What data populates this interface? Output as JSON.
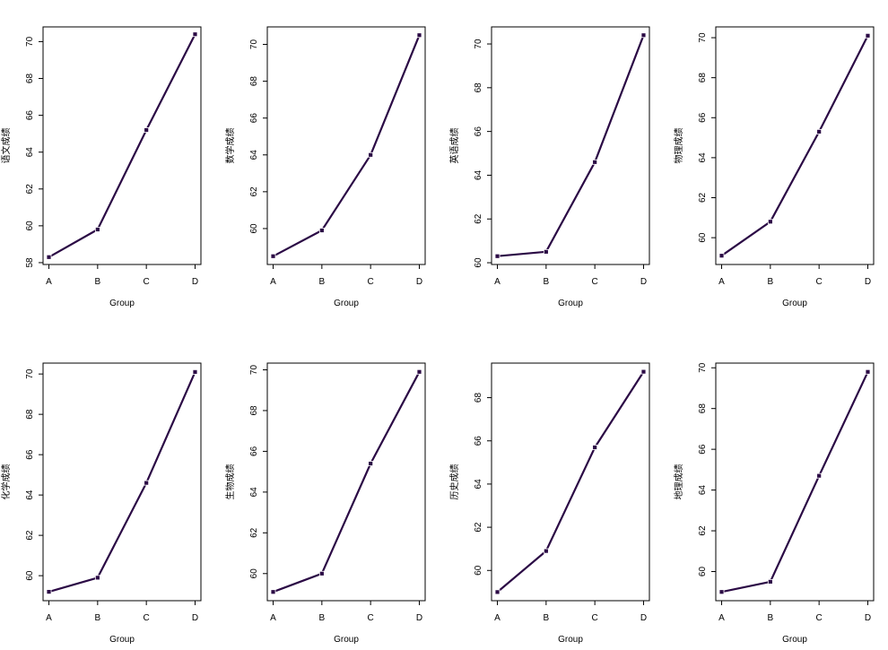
{
  "chart_data": [
    {
      "type": "line",
      "xlabel": "Group",
      "ylabel": "语文成绩",
      "categories": [
        "A",
        "B",
        "C",
        "D"
      ],
      "values": [
        58.3,
        59.8,
        65.2,
        70.4
      ],
      "ylim": [
        57.9,
        70.8
      ],
      "yticks": [
        58,
        60,
        62,
        64,
        66,
        68,
        70
      ]
    },
    {
      "type": "line",
      "xlabel": "Group",
      "ylabel": "数学成绩",
      "categories": [
        "A",
        "B",
        "C",
        "D"
      ],
      "values": [
        58.5,
        59.9,
        64.0,
        70.5
      ],
      "ylim": [
        58.05,
        70.95
      ],
      "yticks": [
        60,
        62,
        64,
        66,
        68,
        70
      ]
    },
    {
      "type": "line",
      "xlabel": "Group",
      "ylabel": "英语成绩",
      "categories": [
        "A",
        "B",
        "C",
        "D"
      ],
      "values": [
        60.3,
        60.5,
        64.6,
        70.4
      ],
      "ylim": [
        59.92,
        70.78
      ],
      "yticks": [
        60,
        62,
        64,
        66,
        68,
        70
      ]
    },
    {
      "type": "line",
      "xlabel": "Group",
      "ylabel": "物理成绩",
      "categories": [
        "A",
        "B",
        "C",
        "D"
      ],
      "values": [
        59.1,
        60.8,
        65.3,
        70.1
      ],
      "ylim": [
        58.66,
        70.54
      ],
      "yticks": [
        60,
        62,
        64,
        66,
        68,
        70
      ]
    },
    {
      "type": "line",
      "xlabel": "Group",
      "ylabel": "化学成绩",
      "categories": [
        "A",
        "B",
        "C",
        "D"
      ],
      "values": [
        59.2,
        59.9,
        64.6,
        70.1
      ],
      "ylim": [
        58.76,
        70.54
      ],
      "yticks": [
        60,
        62,
        64,
        66,
        68,
        70
      ]
    },
    {
      "type": "line",
      "xlabel": "Group",
      "ylabel": "生物成绩",
      "categories": [
        "A",
        "B",
        "C",
        "D"
      ],
      "values": [
        59.1,
        60.0,
        65.4,
        69.9
      ],
      "ylim": [
        58.67,
        70.33
      ],
      "yticks": [
        60,
        62,
        64,
        66,
        68,
        70
      ]
    },
    {
      "type": "line",
      "xlabel": "Group",
      "ylabel": "历史成绩",
      "categories": [
        "A",
        "B",
        "C",
        "D"
      ],
      "values": [
        59.0,
        60.9,
        65.7,
        69.2
      ],
      "ylim": [
        58.6,
        69.6
      ],
      "yticks": [
        60,
        62,
        64,
        66,
        68
      ]
    },
    {
      "type": "line",
      "xlabel": "Group",
      "ylabel": "地理成绩",
      "categories": [
        "A",
        "B",
        "C",
        "D"
      ],
      "values": [
        59.0,
        59.5,
        64.7,
        69.8
      ],
      "ylim": [
        58.57,
        70.23
      ],
      "yticks": [
        60,
        62,
        64,
        66,
        68,
        70
      ]
    }
  ],
  "colors": {
    "line": "#2b0a45",
    "marker": "#2b0a45",
    "axis": "#000000",
    "background": "#ffffff"
  }
}
